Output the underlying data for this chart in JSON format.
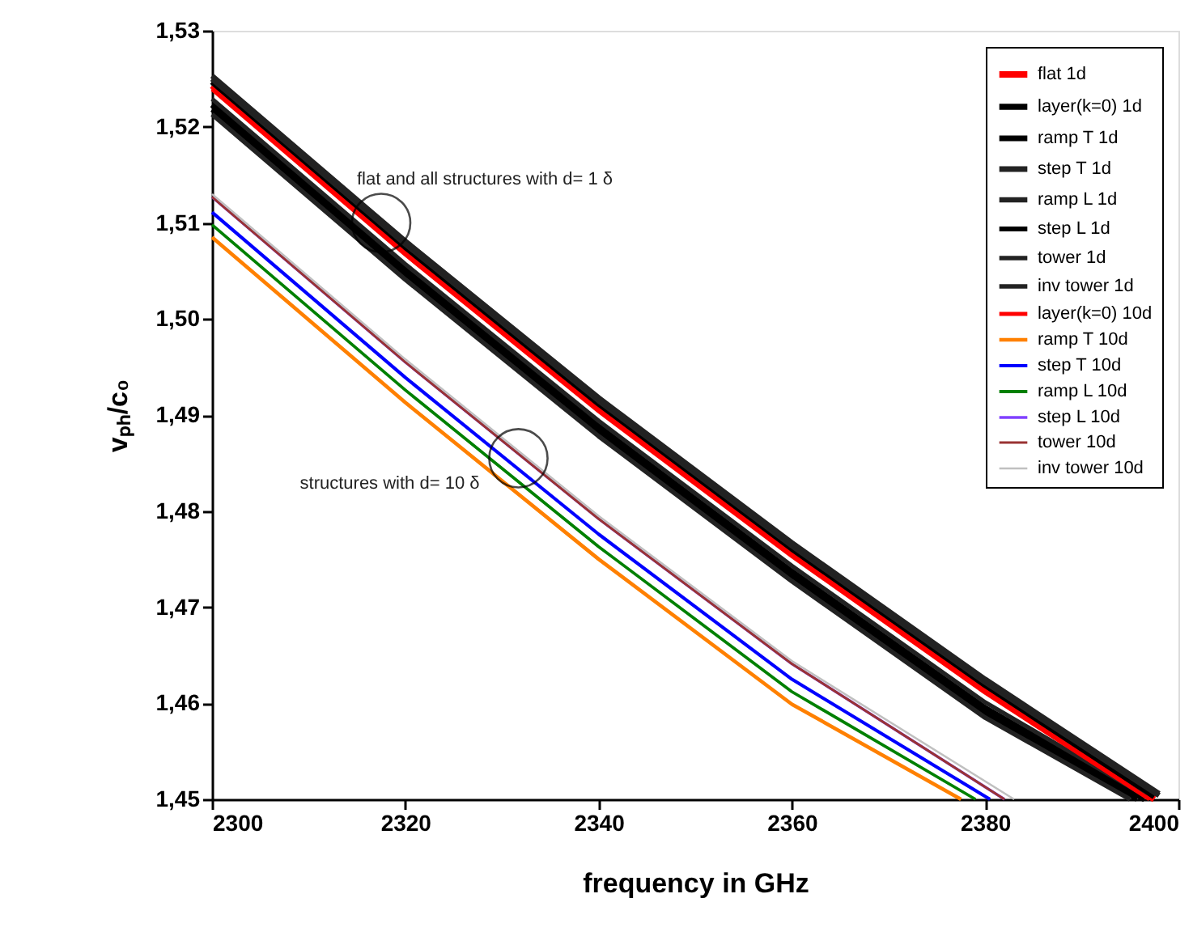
{
  "chart_data": {
    "type": "line",
    "xlabel": "frequency in GHz",
    "ylabel": "vₚₕ/c₀",
    "xlim": [
      2300,
      2400
    ],
    "ylim": [
      1.45,
      1.53
    ],
    "xticks": [
      {
        "value": 2300,
        "label": "2300"
      },
      {
        "value": 2320,
        "label": "2320"
      },
      {
        "value": 2340,
        "label": "2340"
      },
      {
        "value": 2360,
        "label": "2360"
      },
      {
        "value": 2380,
        "label": "2380"
      },
      {
        "value": 2400,
        "label": "2400"
      }
    ],
    "yticks": [
      {
        "value": 1.45,
        "label": "1,45"
      },
      {
        "value": 1.46,
        "label": "1,46"
      },
      {
        "value": 1.47,
        "label": "1,47"
      },
      {
        "value": 1.48,
        "label": "1,48"
      },
      {
        "value": 1.49,
        "label": "1,49"
      },
      {
        "value": 1.5,
        "label": "1,50"
      },
      {
        "value": 1.51,
        "label": "1,51"
      },
      {
        "value": 1.52,
        "label": "1,52"
      },
      {
        "value": 1.53,
        "label": "1,53"
      }
    ],
    "grid": false,
    "legend": "top right",
    "line_style": "solid",
    "marker": "none",
    "annotations": [
      {
        "text": "flat and all structures with d= 1 δ",
        "x": 2317.5,
        "y": 1.51
      },
      {
        "text": "structures with d= 10 δ",
        "x": 2331.7,
        "y": 1.4855
      }
    ],
    "series": [
      {
        "name": "flat 1d",
        "color": "#ff0000",
        "x": [
          2300,
          2320,
          2340,
          2360,
          2380,
          2397.5
        ],
        "values": [
          1.5243,
          1.5071,
          1.4908,
          1.4757,
          1.4615,
          1.45
        ]
      },
      {
        "name": "layer(k=0) 1d",
        "color": "#000000",
        "x": [
          2300,
          2320,
          2340,
          2360,
          2380,
          2397.5
        ],
        "values": [
          1.5247,
          1.5075,
          1.4912,
          1.4761,
          1.4619,
          1.4503
        ]
      },
      {
        "name": "ramp T 1d",
        "color": "#000000",
        "x": [
          2300,
          2320,
          2340,
          2360,
          2380,
          2396.5
        ],
        "values": [
          1.5223,
          1.5051,
          1.4888,
          1.4737,
          1.4595,
          1.45
        ]
      },
      {
        "name": "step T 1d",
        "color": "#222222",
        "x": [
          2300,
          2320,
          2340,
          2360,
          2380,
          2398
        ],
        "values": [
          1.525,
          1.5078,
          1.4915,
          1.4764,
          1.4622,
          1.4504
        ]
      },
      {
        "name": "ramp L 1d",
        "color": "#222222",
        "x": [
          2300,
          2320,
          2340,
          2360,
          2380,
          2398
        ],
        "values": [
          1.5253,
          1.5081,
          1.4918,
          1.4767,
          1.4625,
          1.4506
        ]
      },
      {
        "name": "step L 1d",
        "color": "#000000",
        "x": [
          2300,
          2320,
          2340,
          2360,
          2380,
          2395.7
        ],
        "values": [
          1.5218,
          1.5046,
          1.4883,
          1.4732,
          1.459,
          1.45
        ]
      },
      {
        "name": "tower 1d",
        "color": "#222222",
        "x": [
          2300,
          2320,
          2340,
          2360,
          2380,
          2395
        ],
        "values": [
          1.5213,
          1.5041,
          1.4878,
          1.4727,
          1.4585,
          1.45
        ]
      },
      {
        "name": "inv tower 1d",
        "color": "#222222",
        "x": [
          2300,
          2320,
          2340,
          2360,
          2380,
          2396.5
        ],
        "values": [
          1.5229,
          1.5057,
          1.4894,
          1.4743,
          1.4601,
          1.4504
        ]
      },
      {
        "name": "layer(k=0) 10d",
        "color": "#ff0000",
        "x": [
          2300,
          2320,
          2340,
          2360,
          2380,
          2397
        ],
        "values": [
          1.5239,
          1.5067,
          1.4904,
          1.4753,
          1.4611,
          1.45
        ]
      },
      {
        "name": "ramp T 10d",
        "color": "#ff8000",
        "x": [
          2300,
          2320,
          2340,
          2360,
          2377.5
        ],
        "values": [
          1.5085,
          1.4913,
          1.475,
          1.4599,
          1.45
        ]
      },
      {
        "name": "step T 10d",
        "color": "#0000ff",
        "x": [
          2300,
          2320,
          2340,
          2360,
          2380.5
        ],
        "values": [
          1.5111,
          1.4939,
          1.4776,
          1.4625,
          1.45
        ]
      },
      {
        "name": "ramp L 10d",
        "color": "#008000",
        "x": [
          2300,
          2320,
          2340,
          2360,
          2379
        ],
        "values": [
          1.5098,
          1.4926,
          1.4763,
          1.4612,
          1.45
        ]
      },
      {
        "name": "step L 10d",
        "color": "#8040ff",
        "x": [
          2300,
          2320,
          2340,
          2360,
          2382
        ],
        "values": [
          1.5127,
          1.4955,
          1.4792,
          1.4641,
          1.45
        ]
      },
      {
        "name": "tower 10d",
        "color": "#993333",
        "x": [
          2300,
          2320,
          2340,
          2360,
          2382
        ],
        "values": [
          1.5127,
          1.4955,
          1.4792,
          1.4641,
          1.45
        ]
      },
      {
        "name": "inv tower 10d",
        "color": "#c0c0c0",
        "x": [
          2300,
          2320,
          2340,
          2360,
          2383
        ],
        "values": [
          1.513,
          1.4958,
          1.4795,
          1.4644,
          1.45
        ]
      }
    ]
  }
}
